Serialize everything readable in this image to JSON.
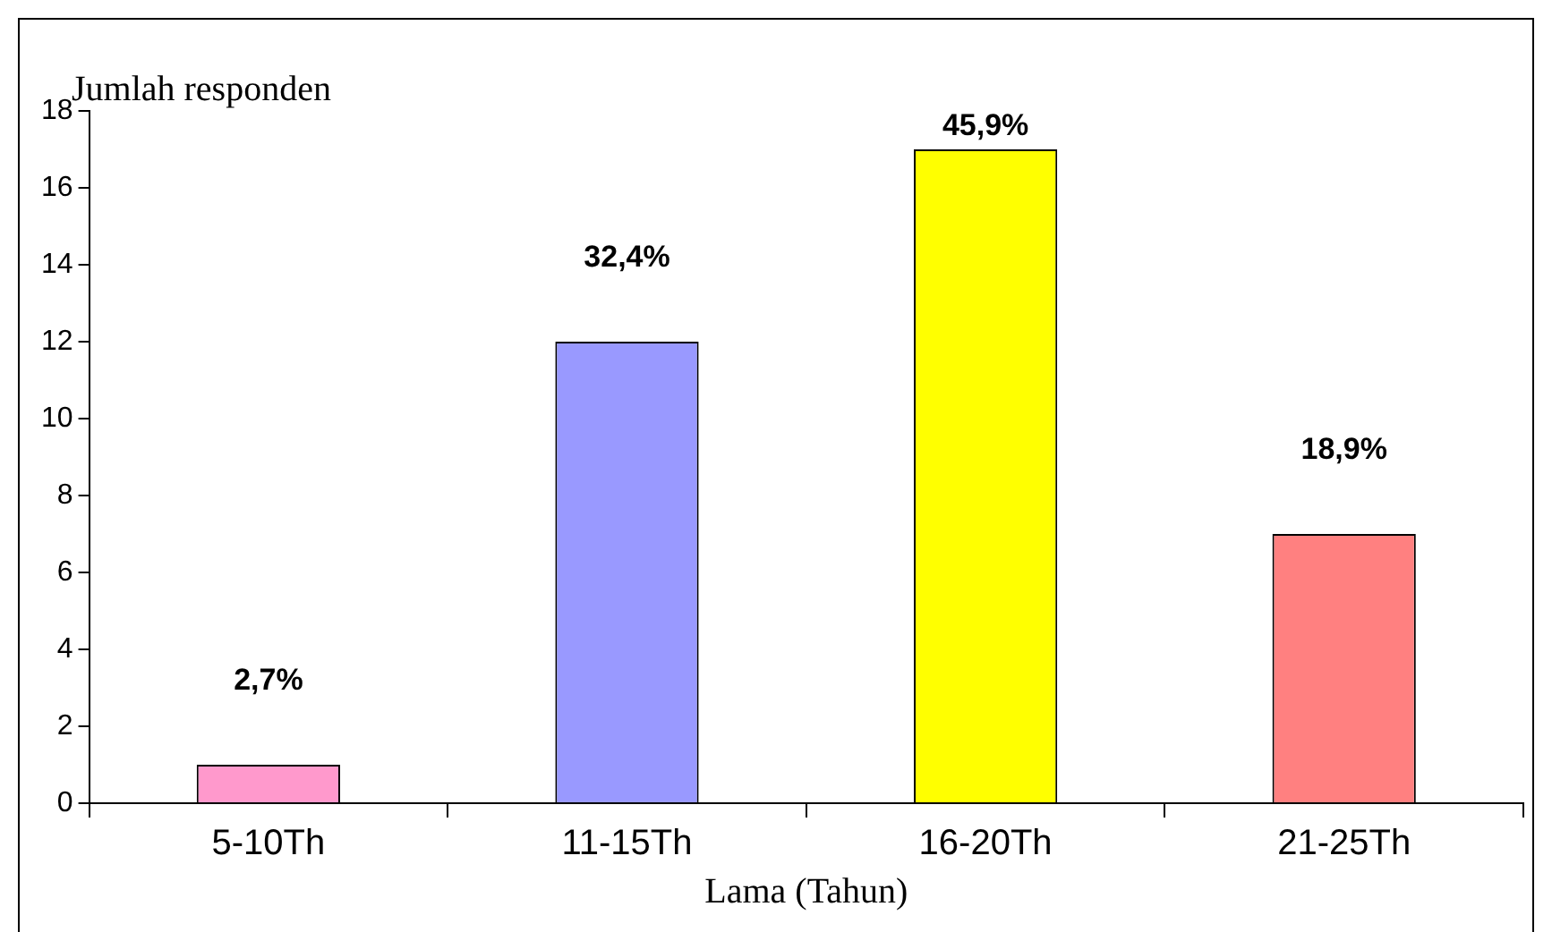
{
  "chart_data": {
    "type": "bar",
    "ylabel": "Jumlah responden",
    "xlabel": "Lama (Tahun)",
    "categories": [
      "5-10Th",
      "11-15Th",
      "16-20Th",
      "21-25Th"
    ],
    "values": [
      1,
      12,
      17,
      7
    ],
    "colors": [
      "#ff99cc",
      "#9999ff",
      "#ffff00",
      "#ff8080"
    ],
    "annotations": [
      {
        "text": "2,7%",
        "x": "5-10Th",
        "y": 1
      },
      {
        "text": "32,4%",
        "x": "11-15Th",
        "y": 12
      },
      {
        "text": "45,9%",
        "x": "16-20Th",
        "y": 17
      },
      {
        "text": "18,9%",
        "x": "21-25Th",
        "y": 7
      }
    ],
    "ylim": [
      0,
      18
    ],
    "yticks": [
      0,
      2,
      4,
      6,
      8,
      10,
      12,
      14,
      16,
      18
    ],
    "grid": false,
    "legend": false
  }
}
